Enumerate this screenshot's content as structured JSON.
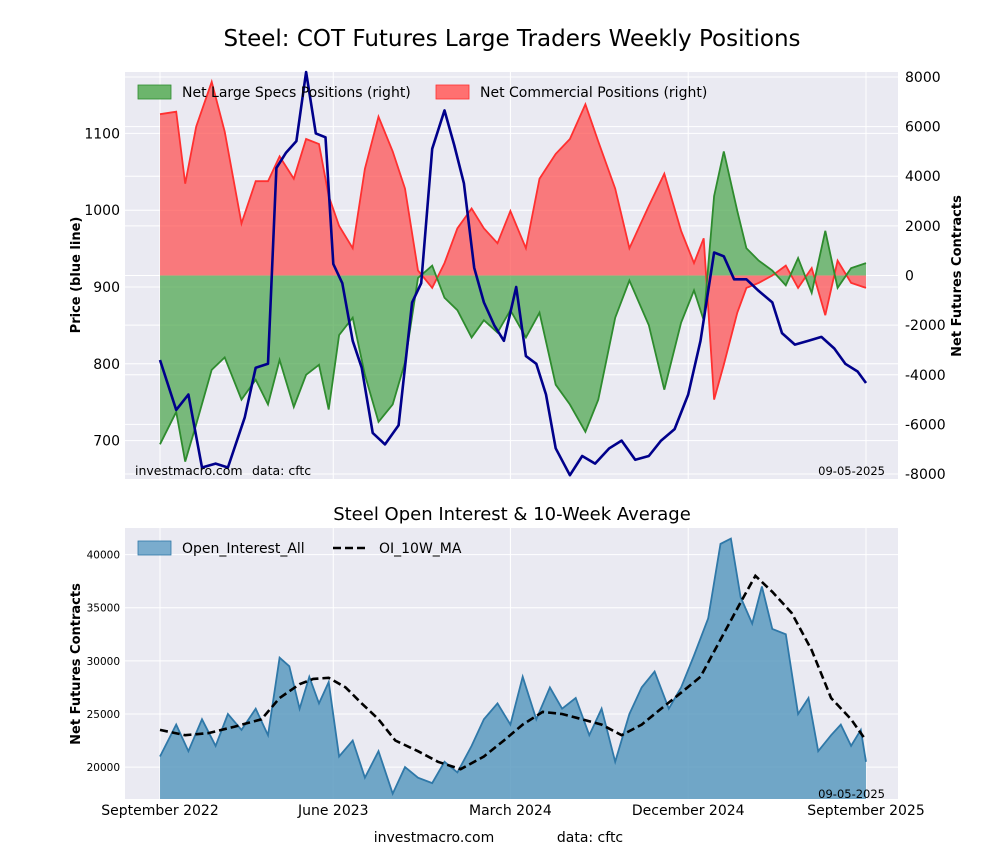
{
  "figure": {
    "title": "Steel: COT Futures Large Traders Weekly Positions",
    "footer_site": "investmacro.com",
    "footer_data": "data: cftc"
  },
  "colors": {
    "background": "#eaeaf2",
    "grid": "#ffffff",
    "specs_fill": "#4ca64c",
    "specs_line": "#2e8b2e",
    "comm_fill": "#ff4d4d",
    "comm_line": "#ff3030",
    "price_line": "#00008b",
    "oi_fill": "#5b9abf",
    "oi_line": "#2f78a8",
    "ma_line": "#000000"
  },
  "top_panel": {
    "watermark_site": "investmacro.com",
    "watermark_data": "data: cftc",
    "date_stamp": "09-05-2025"
  },
  "bottom_panel": {
    "title": "Steel Open Interest & 10-Week Average",
    "date_stamp": "09-05-2025"
  },
  "chart_data": [
    {
      "type": "area",
      "title": "Steel: COT Futures Large Traders Weekly Positions",
      "xlabel": "",
      "ylabel_left": "Price (blue line)",
      "ylabel_right": "Net Futures Contracts",
      "x_range": [
        "2022-09-06",
        "2025-09-02"
      ],
      "ylim_left": [
        650,
        1180
      ],
      "ylim_right": [
        -8200,
        8200
      ],
      "yticks_left": [
        700,
        800,
        900,
        1000,
        1100
      ],
      "yticks_right": [
        8000,
        6000,
        4000,
        2000,
        0,
        -2000,
        -4000,
        -6000,
        -8000
      ],
      "grid": true,
      "legend_position": "top-left",
      "series": [
        {
          "name": "Net Large Specs Positions (right)",
          "kind": "area",
          "x": [
            "2022-09-06",
            "2022-10-01",
            "2022-10-15",
            "2022-11-01",
            "2022-11-25",
            "2022-12-15",
            "2023-01-10",
            "2023-02-01",
            "2023-02-20",
            "2023-03-10",
            "2023-04-01",
            "2023-04-20",
            "2023-05-10",
            "2023-05-25",
            "2023-06-10",
            "2023-07-01",
            "2023-07-20",
            "2023-08-10",
            "2023-09-01",
            "2023-09-20",
            "2023-10-10",
            "2023-11-01",
            "2023-11-20",
            "2023-12-10",
            "2024-01-01",
            "2024-01-20",
            "2024-02-10",
            "2024-03-01",
            "2024-03-25",
            "2024-04-15",
            "2024-05-10",
            "2024-06-01",
            "2024-06-25",
            "2024-07-15",
            "2024-08-10",
            "2024-09-01",
            "2024-10-01",
            "2024-10-25",
            "2024-11-20",
            "2024-12-10",
            "2024-12-25",
            "2025-01-10",
            "2025-01-25",
            "2025-02-15",
            "2025-03-01",
            "2025-03-20",
            "2025-04-10",
            "2025-05-01",
            "2025-05-20",
            "2025-06-10",
            "2025-07-01",
            "2025-07-20",
            "2025-08-10",
            "2025-09-02"
          ],
          "values": [
            -6800,
            -5500,
            -7500,
            -6000,
            -3800,
            -3300,
            -5000,
            -4200,
            -5200,
            -3400,
            -5300,
            -4000,
            -3600,
            -5400,
            -2400,
            -1700,
            -4000,
            -5900,
            -5200,
            -3500,
            -100,
            400,
            -900,
            -1400,
            -2500,
            -1800,
            -2300,
            -1400,
            -2500,
            -1500,
            -4400,
            -5200,
            -6300,
            -5000,
            -1700,
            -200,
            -2000,
            -4600,
            -1900,
            -600,
            -1800,
            3200,
            5000,
            2600,
            1100,
            600,
            200,
            -400,
            700,
            -700,
            1800,
            -500,
            300,
            500
          ]
        },
        {
          "name": "Net Commercial Positions (right)",
          "kind": "area",
          "x": [
            "2022-09-06",
            "2022-10-01",
            "2022-10-15",
            "2022-11-01",
            "2022-11-25",
            "2022-12-15",
            "2023-01-10",
            "2023-02-01",
            "2023-02-20",
            "2023-03-10",
            "2023-04-01",
            "2023-04-20",
            "2023-05-10",
            "2023-05-25",
            "2023-06-10",
            "2023-07-01",
            "2023-07-20",
            "2023-08-10",
            "2023-09-01",
            "2023-09-20",
            "2023-10-10",
            "2023-11-01",
            "2023-11-20",
            "2023-12-10",
            "2024-01-01",
            "2024-01-20",
            "2024-02-10",
            "2024-03-01",
            "2024-03-25",
            "2024-04-15",
            "2024-05-10",
            "2024-06-01",
            "2024-06-25",
            "2024-07-15",
            "2024-08-10",
            "2024-09-01",
            "2024-10-01",
            "2024-10-25",
            "2024-11-20",
            "2024-12-10",
            "2024-12-25",
            "2025-01-10",
            "2025-01-25",
            "2025-02-15",
            "2025-03-01",
            "2025-03-20",
            "2025-04-10",
            "2025-05-01",
            "2025-05-20",
            "2025-06-10",
            "2025-07-01",
            "2025-07-20",
            "2025-08-10",
            "2025-09-02"
          ],
          "values": [
            6500,
            6600,
            3700,
            6000,
            7800,
            5800,
            2100,
            3800,
            3800,
            4800,
            3900,
            5500,
            5300,
            3200,
            2000,
            1100,
            4300,
            6400,
            5000,
            3500,
            200,
            -500,
            500,
            1900,
            2700,
            1900,
            1300,
            2600,
            1100,
            3900,
            4900,
            5500,
            6900,
            5400,
            3500,
            1100,
            2800,
            4100,
            1800,
            500,
            1500,
            -5000,
            -3600,
            -1500,
            -500,
            -300,
            0,
            400,
            -500,
            300,
            -1600,
            600,
            -300,
            -500
          ]
        },
        {
          "name": "Price",
          "kind": "line",
          "axis": "left",
          "x": [
            "2022-09-06",
            "2022-10-01",
            "2022-10-20",
            "2022-11-10",
            "2022-12-01",
            "2022-12-20",
            "2023-01-15",
            "2023-02-01",
            "2023-02-20",
            "2023-03-05",
            "2023-03-20",
            "2023-04-05",
            "2023-04-20",
            "2023-05-05",
            "2023-05-20",
            "2023-06-01",
            "2023-06-15",
            "2023-07-01",
            "2023-07-15",
            "2023-08-01",
            "2023-08-20",
            "2023-09-10",
            "2023-10-01",
            "2023-10-15",
            "2023-11-01",
            "2023-11-20",
            "2023-12-05",
            "2023-12-20",
            "2024-01-05",
            "2024-01-20",
            "2024-02-05",
            "2024-02-20",
            "2024-03-10",
            "2024-03-25",
            "2024-04-10",
            "2024-04-25",
            "2024-05-10",
            "2024-06-01",
            "2024-06-20",
            "2024-07-10",
            "2024-08-01",
            "2024-08-20",
            "2024-09-10",
            "2024-10-01",
            "2024-10-20",
            "2024-11-10",
            "2024-12-01",
            "2024-12-20",
            "2025-01-10",
            "2025-01-25",
            "2025-02-10",
            "2025-03-01",
            "2025-03-20",
            "2025-04-10",
            "2025-04-25",
            "2025-05-15",
            "2025-06-05",
            "2025-06-25",
            "2025-07-15",
            "2025-08-01",
            "2025-08-20",
            "2025-09-02"
          ],
          "values": [
            805,
            740,
            760,
            665,
            670,
            665,
            730,
            795,
            800,
            1055,
            1075,
            1090,
            1180,
            1100,
            1095,
            930,
            905,
            830,
            795,
            710,
            695,
            720,
            880,
            905,
            1080,
            1130,
            1085,
            1035,
            925,
            880,
            850,
            830,
            900,
            810,
            800,
            760,
            690,
            655,
            680,
            670,
            690,
            700,
            675,
            680,
            700,
            715,
            760,
            830,
            945,
            940,
            910,
            910,
            895,
            880,
            840,
            825,
            830,
            835,
            820,
            800,
            790,
            775
          ]
        }
      ]
    },
    {
      "type": "area",
      "title": "Steel Open Interest & 10-Week Average",
      "xlabel": "",
      "ylabel": "Net Futures Contracts",
      "x_range": [
        "2022-09-06",
        "2025-09-02"
      ],
      "ylim": [
        17000,
        42500
      ],
      "yticks": [
        20000,
        25000,
        30000,
        35000,
        40000
      ],
      "xticks": [
        "September 2022",
        "June 2023",
        "March 2024",
        "December 2024",
        "September 2025"
      ],
      "grid": true,
      "legend_position": "top-left",
      "series": [
        {
          "name": "Open_Interest_All",
          "kind": "area",
          "x": [
            "2022-09-06",
            "2022-10-01",
            "2022-10-20",
            "2022-11-10",
            "2022-12-01",
            "2022-12-20",
            "2023-01-10",
            "2023-02-01",
            "2023-02-20",
            "2023-03-10",
            "2023-03-25",
            "2023-04-10",
            "2023-04-25",
            "2023-05-10",
            "2023-05-25",
            "2023-06-10",
            "2023-07-01",
            "2023-07-20",
            "2023-08-10",
            "2023-09-01",
            "2023-09-20",
            "2023-10-10",
            "2023-11-01",
            "2023-11-20",
            "2023-12-10",
            "2024-01-01",
            "2024-01-20",
            "2024-02-10",
            "2024-03-01",
            "2024-03-20",
            "2024-04-10",
            "2024-05-01",
            "2024-05-20",
            "2024-06-10",
            "2024-07-01",
            "2024-07-20",
            "2024-08-10",
            "2024-09-01",
            "2024-09-20",
            "2024-10-10",
            "2024-11-01",
            "2024-11-20",
            "2024-12-10",
            "2025-01-01",
            "2025-01-20",
            "2025-02-05",
            "2025-02-20",
            "2025-03-10",
            "2025-03-25",
            "2025-04-10",
            "2025-05-01",
            "2025-05-20",
            "2025-06-05",
            "2025-06-20",
            "2025-07-10",
            "2025-07-25",
            "2025-08-10",
            "2025-08-25",
            "2025-09-02"
          ],
          "values": [
            21000,
            24000,
            21500,
            24500,
            22000,
            25000,
            23500,
            25500,
            23000,
            30300,
            29500,
            25500,
            28500,
            26000,
            28000,
            21000,
            22500,
            19000,
            21500,
            17500,
            20000,
            19000,
            18500,
            20500,
            19500,
            22000,
            24500,
            26000,
            24000,
            28500,
            24500,
            27500,
            25500,
            26500,
            23000,
            25500,
            20500,
            25000,
            27500,
            29000,
            25500,
            27500,
            30500,
            34000,
            41000,
            41500,
            36000,
            33500,
            37000,
            33000,
            32500,
            25000,
            26500,
            21500,
            23000,
            24000,
            22000,
            23500,
            20500
          ]
        },
        {
          "name": "OI_10W_MA",
          "kind": "line",
          "style": "dashed",
          "x": [
            "2022-09-06",
            "2022-10-15",
            "2022-11-20",
            "2022-12-30",
            "2023-02-10",
            "2023-03-10",
            "2023-04-10",
            "2023-05-01",
            "2023-05-25",
            "2023-06-20",
            "2023-07-15",
            "2023-08-10",
            "2023-09-05",
            "2023-10-10",
            "2023-11-10",
            "2023-12-15",
            "2024-01-20",
            "2024-02-20",
            "2024-03-20",
            "2024-04-20",
            "2024-05-20",
            "2024-06-20",
            "2024-07-20",
            "2024-08-20",
            "2024-09-20",
            "2024-10-20",
            "2024-11-20",
            "2024-12-20",
            "2025-01-20",
            "2025-02-20",
            "2025-03-15",
            "2025-04-10",
            "2025-05-10",
            "2025-06-10",
            "2025-07-10",
            "2025-08-10",
            "2025-09-02"
          ],
          "values": [
            23500,
            23000,
            23200,
            23800,
            24500,
            26500,
            27800,
            28300,
            28400,
            27500,
            26000,
            24500,
            22500,
            21500,
            20500,
            19800,
            21000,
            22500,
            24000,
            25200,
            25000,
            24500,
            24000,
            23000,
            24000,
            25500,
            27000,
            28500,
            32000,
            35500,
            38000,
            36500,
            34500,
            31000,
            26500,
            24500,
            22500
          ]
        }
      ]
    }
  ]
}
